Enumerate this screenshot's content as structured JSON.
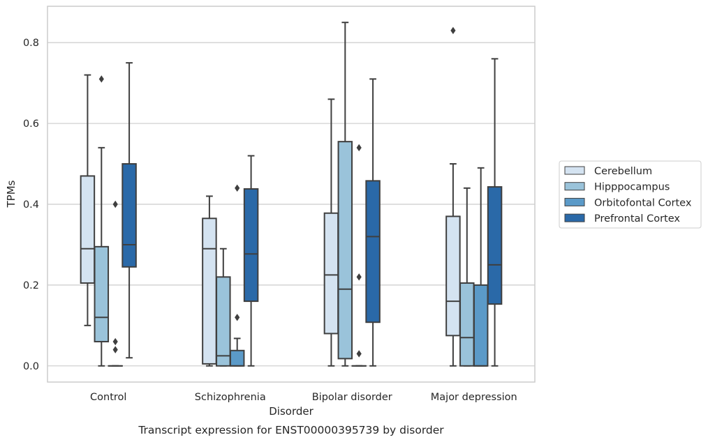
{
  "chart_data": {
    "type": "box",
    "title": "",
    "caption": "Transcript expression for ENST00000395739 by disorder",
    "xlabel": "Disorder",
    "ylabel": "TPMs",
    "ylim": [
      -0.04,
      0.89
    ],
    "yticks": [
      0.0,
      0.2,
      0.4,
      0.6,
      0.8
    ],
    "ytick_labels": [
      "0.0",
      "0.2",
      "0.4",
      "0.6",
      "0.8"
    ],
    "grid": "horizontal",
    "legend_position": "right",
    "categories": [
      "Control",
      "Schizophrenia",
      "Bipolar disorder",
      "Major depression"
    ],
    "series": [
      {
        "name": "Cerebellum",
        "color": "#d4e3f1",
        "boxes": [
          {
            "whislo": 0.1,
            "q1": 0.205,
            "med": 0.29,
            "q3": 0.47,
            "whishi": 0.72,
            "fliers": []
          },
          {
            "whislo": 0.0,
            "q1": 0.005,
            "med": 0.29,
            "q3": 0.365,
            "whishi": 0.42,
            "fliers": []
          },
          {
            "whislo": 0.0,
            "q1": 0.08,
            "med": 0.225,
            "q3": 0.378,
            "whishi": 0.66,
            "fliers": []
          },
          {
            "whislo": 0.0,
            "q1": 0.075,
            "med": 0.16,
            "q3": 0.37,
            "whishi": 0.5,
            "fliers": [
              0.83
            ]
          }
        ]
      },
      {
        "name": "Hipppocampus",
        "color": "#9ac3da",
        "boxes": [
          {
            "whislo": 0.0,
            "q1": 0.06,
            "med": 0.12,
            "q3": 0.295,
            "whishi": 0.54,
            "fliers": [
              0.71
            ]
          },
          {
            "whislo": 0.0,
            "q1": 0.0,
            "med": 0.025,
            "q3": 0.22,
            "whishi": 0.29,
            "fliers": []
          },
          {
            "whislo": 0.0,
            "q1": 0.018,
            "med": 0.19,
            "q3": 0.555,
            "whishi": 0.85,
            "fliers": []
          },
          {
            "whislo": 0.0,
            "q1": 0.0,
            "med": 0.07,
            "q3": 0.205,
            "whishi": 0.44,
            "fliers": []
          }
        ]
      },
      {
        "name": "Orbitofontal Cortex",
        "color": "#5b9ac8",
        "boxes": [
          {
            "whislo": 0.0,
            "q1": 0.0,
            "med": 0.0,
            "q3": 0.0,
            "whishi": 0.0,
            "fliers": [
              0.4,
              0.06,
              0.04
            ]
          },
          {
            "whislo": 0.0,
            "q1": 0.0,
            "med": 0.0,
            "q3": 0.038,
            "whishi": 0.068,
            "fliers": [
              0.44,
              0.12
            ]
          },
          {
            "whislo": 0.0,
            "q1": 0.0,
            "med": 0.0,
            "q3": 0.0,
            "whishi": 0.0,
            "fliers": [
              0.54,
              0.22,
              0.03
            ]
          },
          {
            "whislo": 0.0,
            "q1": 0.0,
            "med": 0.0,
            "q3": 0.2,
            "whishi": 0.49,
            "fliers": []
          }
        ]
      },
      {
        "name": "Prefrontal Cortex",
        "color": "#2a69a8",
        "boxes": [
          {
            "whislo": 0.02,
            "q1": 0.245,
            "med": 0.3,
            "q3": 0.5,
            "whishi": 0.75,
            "fliers": []
          },
          {
            "whislo": 0.0,
            "q1": 0.16,
            "med": 0.277,
            "q3": 0.438,
            "whishi": 0.52,
            "fliers": []
          },
          {
            "whislo": 0.0,
            "q1": 0.108,
            "med": 0.32,
            "q3": 0.458,
            "whishi": 0.71,
            "fliers": []
          },
          {
            "whislo": 0.0,
            "q1": 0.153,
            "med": 0.25,
            "q3": 0.443,
            "whishi": 0.76,
            "fliers": []
          }
        ]
      }
    ]
  },
  "colors": {
    "grid": "#cccccc",
    "axes_edge": "#cccccc",
    "box_edge": "#3f3f3f",
    "text": "#262626"
  }
}
